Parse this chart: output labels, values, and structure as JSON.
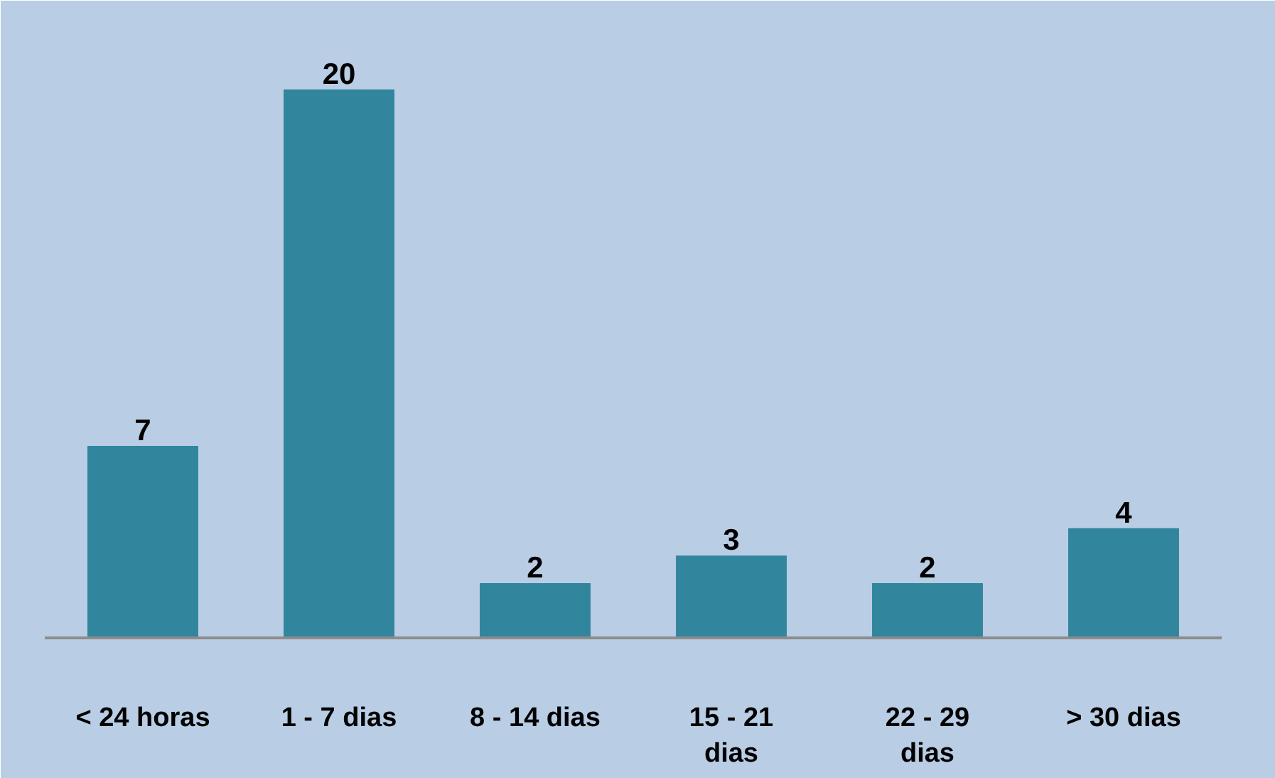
{
  "chart_data": {
    "type": "bar",
    "categories": [
      "< 24 horas",
      "1 - 7 dias",
      "8 - 14 dias",
      "15 - 21 dias",
      "22 - 29 dias",
      "> 30 dias"
    ],
    "values": [
      7,
      20,
      2,
      3,
      2,
      4
    ],
    "color": "#31859c",
    "data_labels": true,
    "tick_labels": "x"
  }
}
